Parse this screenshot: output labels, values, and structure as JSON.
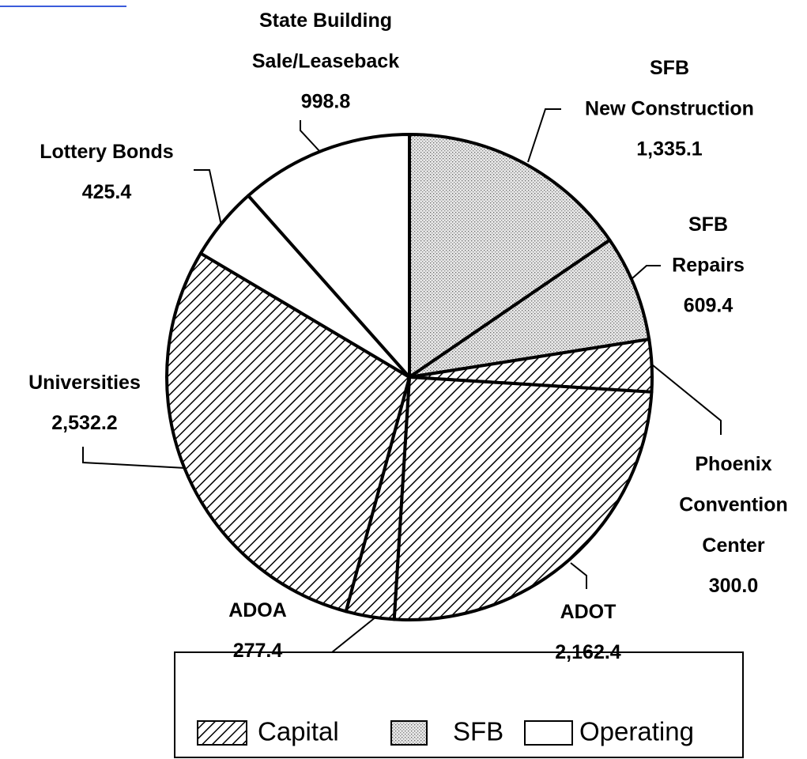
{
  "chart_data": {
    "type": "pie",
    "categories": [
      "SFB\nNew Construction",
      "SFB\nRepairs",
      "Phoenix\nConvention\nCenter",
      "ADOT",
      "ADOA",
      "Universities",
      "Lottery Bonds",
      "State Building\nSale/Leaseback"
    ],
    "values": [
      1335.1,
      609.4,
      300.0,
      2162.4,
      277.4,
      2532.2,
      425.4,
      998.8
    ],
    "value_labels": [
      "1,335.1",
      "609.4",
      "300.0",
      "2,162.4",
      "277.4",
      "2,532.2",
      "425.4",
      "998.8"
    ],
    "patterns": [
      "dots",
      "dots",
      "hatch",
      "hatch",
      "hatch",
      "hatch",
      "none",
      "none"
    ],
    "legend": [
      {
        "name": "Capital",
        "pattern": "hatch"
      },
      {
        "name": "SFB",
        "pattern": "dots"
      },
      {
        "name": "Operating",
        "pattern": "none"
      }
    ]
  }
}
